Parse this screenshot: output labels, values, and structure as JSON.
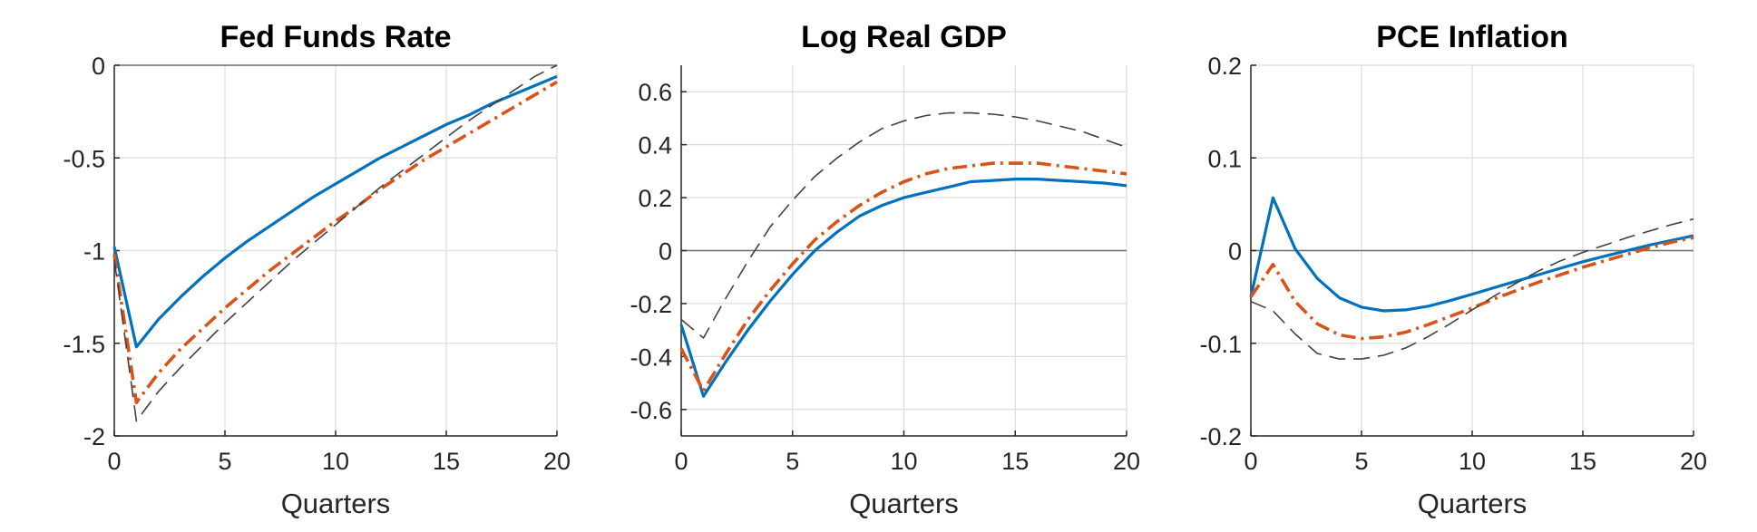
{
  "chart_data": [
    {
      "type": "line",
      "title": "Fed Funds Rate",
      "xlabel": "Quarters",
      "ylabel": "",
      "xlim": [
        0,
        20
      ],
      "ylim": [
        -2,
        0
      ],
      "xticks": [
        0,
        5,
        10,
        15,
        20
      ],
      "xtick_labels": [
        "0",
        "5",
        "10",
        "15",
        "20"
      ],
      "yticks": [
        -2,
        -1.5,
        -1,
        -0.5,
        0
      ],
      "ytick_labels": [
        "-2",
        "-1.5",
        "-1",
        "-0.5",
        "0"
      ],
      "grid": true,
      "zero_line": true,
      "series": [
        {
          "color": "#0072BD",
          "style": "solid",
          "x": [
            0,
            1,
            2,
            3,
            4,
            5,
            6,
            7,
            8,
            9,
            10,
            11,
            12,
            13,
            14,
            15,
            16,
            17,
            18,
            19,
            20
          ],
          "y": [
            -0.98,
            -1.52,
            -1.37,
            -1.25,
            -1.14,
            -1.04,
            -0.95,
            -0.87,
            -0.79,
            -0.71,
            -0.64,
            -0.57,
            -0.5,
            -0.44,
            -0.38,
            -0.32,
            -0.27,
            -0.21,
            -0.16,
            -0.11,
            -0.06
          ]
        },
        {
          "color": "#D95319",
          "style": "dashdot",
          "x": [
            0,
            1,
            2,
            3,
            4,
            5,
            6,
            7,
            8,
            9,
            10,
            11,
            12,
            13,
            14,
            15,
            16,
            17,
            18,
            19,
            20
          ],
          "y": [
            -1.02,
            -1.82,
            -1.66,
            -1.53,
            -1.42,
            -1.31,
            -1.21,
            -1.11,
            -1.02,
            -0.93,
            -0.84,
            -0.76,
            -0.67,
            -0.59,
            -0.51,
            -0.44,
            -0.37,
            -0.3,
            -0.23,
            -0.16,
            -0.09
          ]
        },
        {
          "color": "#404040",
          "style": "dashed",
          "x": [
            0,
            1,
            2,
            3,
            4,
            5,
            6,
            7,
            8,
            9,
            10,
            11,
            12,
            13,
            14,
            15,
            16,
            17,
            18,
            19,
            20
          ],
          "y": [
            -1.05,
            -1.92,
            -1.76,
            -1.63,
            -1.51,
            -1.39,
            -1.28,
            -1.17,
            -1.06,
            -0.96,
            -0.86,
            -0.76,
            -0.66,
            -0.57,
            -0.48,
            -0.39,
            -0.3,
            -0.22,
            -0.14,
            -0.06,
            0.0
          ]
        }
      ]
    },
    {
      "type": "line",
      "title": "Log Real GDP",
      "xlabel": "Quarters",
      "ylabel": "",
      "xlim": [
        0,
        20
      ],
      "ylim": [
        -0.7,
        0.7
      ],
      "xticks": [
        0,
        5,
        10,
        15,
        20
      ],
      "xtick_labels": [
        "0",
        "5",
        "10",
        "15",
        "20"
      ],
      "yticks": [
        -0.6,
        -0.4,
        -0.2,
        0,
        0.2,
        0.4,
        0.6
      ],
      "ytick_labels": [
        "-0.6",
        "-0.4",
        "-0.2",
        "0",
        "0.2",
        "0.4",
        "0.6"
      ],
      "grid": true,
      "zero_line": true,
      "series": [
        {
          "color": "#0072BD",
          "style": "solid",
          "x": [
            0,
            1,
            2,
            3,
            4,
            5,
            6,
            7,
            8,
            9,
            10,
            11,
            12,
            13,
            14,
            15,
            16,
            17,
            18,
            19,
            20
          ],
          "y": [
            -0.28,
            -0.55,
            -0.42,
            -0.3,
            -0.19,
            -0.09,
            0.0,
            0.07,
            0.13,
            0.17,
            0.2,
            0.22,
            0.24,
            0.26,
            0.265,
            0.27,
            0.27,
            0.265,
            0.26,
            0.255,
            0.245
          ]
        },
        {
          "color": "#D95319",
          "style": "dashdot",
          "x": [
            0,
            1,
            2,
            3,
            4,
            5,
            6,
            7,
            8,
            9,
            10,
            11,
            12,
            13,
            14,
            15,
            16,
            17,
            18,
            19,
            20
          ],
          "y": [
            -0.37,
            -0.53,
            -0.39,
            -0.26,
            -0.15,
            -0.05,
            0.04,
            0.11,
            0.17,
            0.22,
            0.26,
            0.29,
            0.31,
            0.32,
            0.33,
            0.33,
            0.33,
            0.32,
            0.31,
            0.3,
            0.29
          ]
        },
        {
          "color": "#404040",
          "style": "dashed",
          "x": [
            0,
            1,
            2,
            3,
            4,
            5,
            6,
            7,
            8,
            9,
            10,
            11,
            12,
            13,
            14,
            15,
            16,
            17,
            18,
            19,
            20
          ],
          "y": [
            -0.26,
            -0.33,
            -0.18,
            -0.04,
            0.09,
            0.19,
            0.28,
            0.35,
            0.41,
            0.46,
            0.49,
            0.51,
            0.52,
            0.52,
            0.515,
            0.505,
            0.49,
            0.47,
            0.45,
            0.42,
            0.39
          ]
        }
      ]
    },
    {
      "type": "line",
      "title": "PCE Inflation",
      "xlabel": "Quarters",
      "ylabel": "",
      "xlim": [
        0,
        20
      ],
      "ylim": [
        -0.2,
        0.2
      ],
      "xticks": [
        0,
        5,
        10,
        15,
        20
      ],
      "xtick_labels": [
        "0",
        "5",
        "10",
        "15",
        "20"
      ],
      "yticks": [
        -0.2,
        -0.1,
        0,
        0.1,
        0.2
      ],
      "ytick_labels": [
        "-0.2",
        "-0.1",
        "0",
        "0.1",
        "0.2"
      ],
      "grid": true,
      "zero_line": true,
      "series": [
        {
          "color": "#0072BD",
          "style": "solid",
          "x": [
            0,
            1,
            2,
            3,
            4,
            5,
            6,
            7,
            8,
            9,
            10,
            11,
            12,
            13,
            14,
            15,
            16,
            17,
            18,
            19,
            20
          ],
          "y": [
            -0.05,
            0.057,
            0.002,
            -0.03,
            -0.051,
            -0.061,
            -0.065,
            -0.064,
            -0.06,
            -0.054,
            -0.047,
            -0.04,
            -0.033,
            -0.026,
            -0.019,
            -0.012,
            -0.006,
            0.0,
            0.006,
            0.011,
            0.016
          ]
        },
        {
          "color": "#D95319",
          "style": "dashdot",
          "x": [
            0,
            1,
            2,
            3,
            4,
            5,
            6,
            7,
            8,
            9,
            10,
            11,
            12,
            13,
            14,
            15,
            16,
            17,
            18,
            19,
            20
          ],
          "y": [
            -0.05,
            -0.015,
            -0.055,
            -0.079,
            -0.091,
            -0.095,
            -0.093,
            -0.088,
            -0.08,
            -0.071,
            -0.062,
            -0.052,
            -0.043,
            -0.034,
            -0.026,
            -0.018,
            -0.011,
            -0.004,
            0.003,
            0.009,
            0.014
          ]
        },
        {
          "color": "#404040",
          "style": "dashed",
          "x": [
            0,
            1,
            2,
            3,
            4,
            5,
            6,
            7,
            8,
            9,
            10,
            11,
            12,
            13,
            14,
            15,
            16,
            17,
            18,
            19,
            20
          ],
          "y": [
            -0.055,
            -0.065,
            -0.09,
            -0.111,
            -0.117,
            -0.117,
            -0.113,
            -0.105,
            -0.093,
            -0.079,
            -0.064,
            -0.049,
            -0.035,
            -0.022,
            -0.011,
            -0.002,
            0.006,
            0.014,
            0.021,
            0.028,
            0.034
          ]
        }
      ]
    }
  ]
}
